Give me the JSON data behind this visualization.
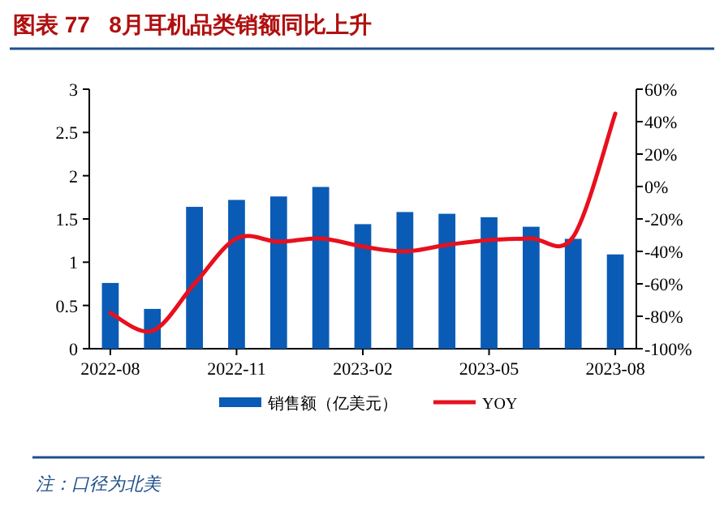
{
  "chart_data": {
    "type": "bar",
    "title": "图表 77   8月耳机品类销额同比上升",
    "categories": [
      "2022-08",
      null,
      null,
      "2022-11",
      null,
      null,
      "2023-02",
      null,
      null,
      "2023-05",
      null,
      null,
      "2023-08"
    ],
    "series": [
      {
        "name": "销售额（亿美元）",
        "color": "#0a5bb5",
        "values": [
          0.76,
          0.46,
          1.64,
          1.72,
          1.76,
          1.87,
          1.44,
          1.58,
          1.56,
          1.52,
          1.41,
          1.27,
          1.09
        ]
      },
      {
        "name": "YOY",
        "type": "line",
        "axis": "y2",
        "color": "#e8101e",
        "values": [
          -78,
          -89,
          -60,
          -32,
          -34,
          -32,
          -37,
          -40,
          -36,
          -33,
          -32,
          -31,
          45
        ]
      }
    ],
    "ylim": [
      0,
      3
    ],
    "yticks": [
      0,
      0.5,
      1,
      1.5,
      2,
      2.5,
      3
    ],
    "y2lim": [
      -100,
      60
    ],
    "y2ticks": [
      {
        "value": -100,
        "label": "-100%"
      },
      {
        "value": -80,
        "label": "-80%"
      },
      {
        "value": -60,
        "label": "-60%"
      },
      {
        "value": -40,
        "label": "-40%"
      },
      {
        "value": -20,
        "label": "-20%"
      },
      {
        "value": 0,
        "label": "0%"
      },
      {
        "value": 20,
        "label": "20%"
      },
      {
        "value": 40,
        "label": "40%"
      },
      {
        "value": 60,
        "label": "60%"
      }
    ],
    "legend": "bottom",
    "grid": false,
    "annotations": [
      "注：口径为北美"
    ]
  }
}
